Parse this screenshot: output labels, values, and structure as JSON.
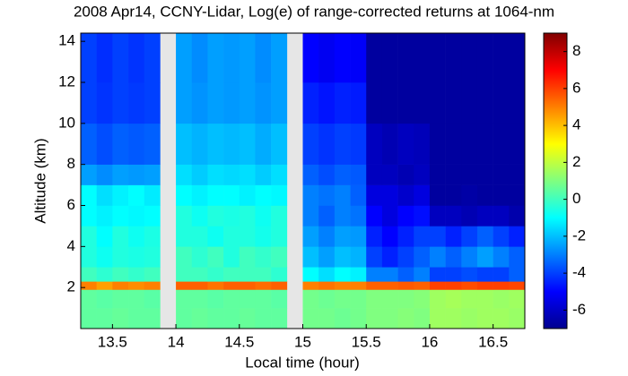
{
  "chart_data": {
    "type": "heatmap",
    "title": "2008 Apr14, CCNY-Lidar, Log(e) of range-corrected returns at 1064-nm",
    "x_label": "Local time (hour)",
    "y_label": "Altitude (km)",
    "xlim": [
      13.25,
      16.75
    ],
    "ylim": [
      0,
      14.4
    ],
    "xticks": [
      13.5,
      14,
      14.5,
      15,
      15.5,
      16,
      16.5
    ],
    "yticks": [
      2,
      4,
      6,
      8,
      10,
      12,
      14
    ],
    "clim": [
      -7,
      9
    ],
    "cticks": [
      -6,
      -4,
      -2,
      0,
      2,
      4,
      6,
      8
    ],
    "colormap": "jet",
    "x_edges": [
      13.25,
      13.375,
      13.5,
      13.625,
      13.75,
      13.875,
      14.0,
      14.125,
      14.25,
      14.375,
      14.5,
      14.625,
      14.75,
      14.875,
      15.0,
      15.125,
      15.25,
      15.375,
      15.5,
      15.625,
      15.75,
      15.875,
      16.0,
      16.125,
      16.25,
      16.375,
      16.5,
      16.625,
      16.75
    ],
    "y_edges": [
      0,
      1,
      1.9,
      2.3,
      3,
      4,
      5,
      6,
      7,
      8,
      10,
      12,
      14.4
    ],
    "z": [
      [
        0.5,
        0.5,
        0.6,
        0.5,
        0.5,
        null,
        0.5,
        0.6,
        0.5,
        0.5,
        0.6,
        0.5,
        0.5,
        null,
        0.8,
        0.8,
        0.7,
        0.8,
        1,
        1,
        1.1,
        1,
        1.5,
        1.5,
        1.4,
        1.5,
        1.5,
        1.4
      ],
      [
        0.5,
        0.4,
        0.5,
        0.5,
        0.4,
        null,
        0.5,
        0.5,
        0.4,
        0.5,
        0.5,
        0.5,
        0.4,
        null,
        0.8,
        0.7,
        0.8,
        0.8,
        1,
        1,
        1,
        1.1,
        1.5,
        1.6,
        1.5,
        1.5,
        1.4,
        1.5
      ],
      [
        5,
        4.5,
        5,
        4.8,
        5,
        null,
        5.5,
        5.5,
        5.2,
        5.5,
        5.5,
        5.3,
        5.5,
        null,
        5,
        5.2,
        5,
        5,
        5.5,
        5.5,
        5.6,
        5.5,
        6,
        6,
        5.8,
        6,
        6,
        5.9
      ],
      [
        0,
        -0.3,
        0,
        -0.2,
        0,
        null,
        0,
        0,
        -0.2,
        0,
        0,
        0,
        -0.3,
        null,
        -1,
        -1.5,
        -1,
        -1.2,
        -3,
        -3,
        -3.5,
        -3,
        -4,
        -4,
        -3.8,
        -4,
        -4,
        -3.5
      ],
      [
        -0.5,
        -0.8,
        -0.5,
        -0.6,
        -0.5,
        null,
        0,
        -0.3,
        0,
        -0.5,
        0,
        -0.2,
        0,
        null,
        -2,
        -2.5,
        -2,
        -2.2,
        -4,
        -4.5,
        -4,
        -3.5,
        -3,
        -3.5,
        -3,
        -2.5,
        -3,
        -3.5
      ],
      [
        -0.5,
        -1,
        -0.5,
        -0.8,
        -0.6,
        null,
        -0.5,
        -0.5,
        -0.8,
        -0.5,
        -0.5,
        -0.7,
        -0.5,
        null,
        -2.5,
        -3,
        -2.5,
        -2.6,
        -4.5,
        -5,
        -4.5,
        -4,
        -4,
        -4.5,
        -4,
        -3.5,
        -4,
        -4.5
      ],
      [
        -1,
        -1.2,
        -1,
        -1.1,
        -1,
        null,
        -0.5,
        -0.8,
        -0.5,
        -0.6,
        -0.5,
        -0.8,
        -0.5,
        null,
        -3,
        -3.5,
        -3,
        -3.2,
        -5,
        -5.5,
        -5,
        -4.8,
        -6,
        -6,
        -6.2,
        -6,
        -6,
        -6.3
      ],
      [
        -1,
        -1.5,
        -1.2,
        -1,
        -1.3,
        null,
        -1,
        -1.2,
        -1,
        -1,
        -1.2,
        -1,
        -1.1,
        null,
        -3,
        -3.2,
        -3,
        -3.5,
        -5.5,
        -5.5,
        -5.8,
        -5.5,
        -6.5,
        -6.5,
        -6.4,
        -6.5,
        -6.5,
        -6.5
      ],
      [
        -2.5,
        -2.8,
        -2.5,
        -2.6,
        -2.5,
        null,
        -1.5,
        -1.8,
        -1.5,
        -1.6,
        -1.5,
        -1.8,
        -1.5,
        null,
        -3.5,
        -3.8,
        -3.5,
        -3.6,
        -6,
        -6,
        -6.2,
        -6,
        -6.5,
        -6.5,
        -6.5,
        -6.5,
        -6.5,
        -6.5
      ],
      [
        -3.5,
        -3.8,
        -3.5,
        -3.6,
        -3.5,
        null,
        -2,
        -2.2,
        -2,
        -2.1,
        -2,
        -2.3,
        -2,
        null,
        -4,
        -4.2,
        -4,
        -4.1,
        -6,
        -6.2,
        -6,
        -6.1,
        -6.5,
        -6.5,
        -6.5,
        -6.5,
        -6.5,
        -6.5
      ],
      [
        -4,
        -4.2,
        -4,
        -4.1,
        -4,
        null,
        -2.5,
        -2.7,
        -2.5,
        -2.6,
        -2.5,
        -2.7,
        -2.5,
        null,
        -4.5,
        -4.7,
        -4.5,
        -4.6,
        -6.5,
        -6.5,
        -6.5,
        -6.5,
        -6.5,
        -6.5,
        -6.5,
        -6.5,
        -6.5,
        -6.5
      ],
      [
        -4,
        -4.3,
        -4,
        -4.2,
        -4,
        null,
        -2.5,
        -2.8,
        -2.5,
        -2.6,
        -2.5,
        -2.8,
        -2.5,
        null,
        -5,
        -5.2,
        -5,
        -5.1,
        -6.5,
        -6.5,
        -6.5,
        -6.5,
        -6.5,
        -6.5,
        -6.5,
        -6.5,
        -6.5,
        -6.5
      ]
    ]
  }
}
